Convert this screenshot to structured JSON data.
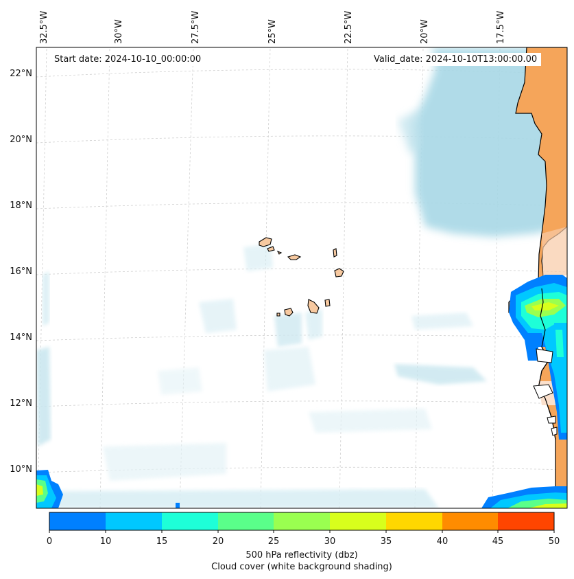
{
  "lon_labels": [
    "32.5°W",
    "30°W",
    "27.5°W",
    "25°W",
    "22.5°W",
    "20°W",
    "17.5°W"
  ],
  "lat_labels": [
    "22°N",
    "20°N",
    "18°N",
    "16°N",
    "14°N",
    "12°N",
    "10°N"
  ],
  "start_date": "Start date: 2024-10-10_00:00:00",
  "valid_date": "Valid_date: 2024-10-10T13:00:00.00",
  "colorbar": {
    "ticks": [
      "0",
      "10",
      "15",
      "20",
      "25",
      "30",
      "35",
      "40",
      "45",
      "50"
    ],
    "colors": [
      "#0080ff",
      "#00c8ff",
      "#1effd8",
      "#5aff8a",
      "#9aff50",
      "#d8ff1c",
      "#ffd700",
      "#ff8c00",
      "#ff4500"
    ],
    "label_line1": "500 hPa reflectivity (dbz)",
    "label_line2": "Cloud cover (white background shading)"
  },
  "colors": {
    "land": "#f5a55a",
    "island": "#f7c9a0",
    "cloud": "#a8d8e6",
    "grid": "#cccccc"
  }
}
